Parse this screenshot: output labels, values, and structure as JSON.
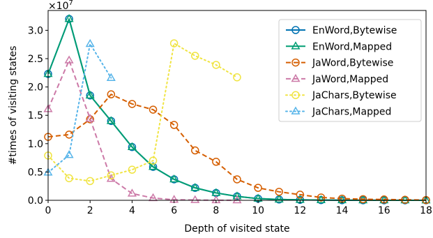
{
  "chart_data": {
    "type": "line",
    "title": "",
    "xlabel": "Depth of visited state",
    "ylabel": "#times of visiting states",
    "offset_text": "×10",
    "offset_exponent": "7",
    "xlim": [
      0,
      18
    ],
    "ylim": [
      0,
      3.35
    ],
    "y_scale_multiplier": 10000000,
    "xticks": [
      "0",
      "2",
      "4",
      "6",
      "8",
      "10",
      "12",
      "14",
      "16",
      "18"
    ],
    "yticks": [
      "0.0",
      "0.5",
      "1.0",
      "1.5",
      "2.0",
      "2.5",
      "3.0"
    ],
    "grid": false,
    "legend_position": "top-right",
    "series": [
      {
        "name": "EnWord,Bytewise",
        "color": "#0072B2",
        "linestyle": "solid",
        "marker": "circle",
        "x": [
          0,
          1,
          2,
          3,
          4,
          5,
          6,
          7,
          8,
          9,
          10,
          11,
          12,
          13,
          14,
          15,
          16,
          17,
          18
        ],
        "y": [
          2.23,
          3.2,
          1.85,
          1.4,
          0.94,
          0.59,
          0.37,
          0.22,
          0.13,
          0.07,
          0.03,
          0.015,
          0.008,
          0.004,
          0.002,
          0.001,
          0.0005,
          0.0002,
          0.0001
        ]
      },
      {
        "name": "EnWord,Mapped",
        "color": "#009E73",
        "linestyle": "solid",
        "marker": "triangle",
        "x": [
          0,
          1,
          2,
          3,
          4,
          5,
          6,
          7,
          8,
          9,
          10,
          11,
          12,
          13,
          14,
          15,
          16,
          17,
          18
        ],
        "y": [
          2.23,
          3.2,
          1.85,
          1.4,
          0.94,
          0.59,
          0.37,
          0.22,
          0.13,
          0.07,
          0.03,
          0.015,
          0.008,
          0.004,
          0.002,
          0.001,
          0.0005,
          0.0002,
          0.0001
        ]
      },
      {
        "name": "JaWord,Bytewise",
        "color": "#D55E00",
        "linestyle": "dashed",
        "marker": "circle",
        "x": [
          0,
          1,
          2,
          3,
          4,
          5,
          6,
          7,
          8,
          9,
          10,
          11,
          12,
          13,
          14,
          15,
          16,
          17,
          18
        ],
        "y": [
          1.12,
          1.16,
          1.43,
          1.87,
          1.7,
          1.6,
          1.33,
          0.88,
          0.68,
          0.37,
          0.22,
          0.15,
          0.1,
          0.05,
          0.03,
          0.02,
          0.015,
          0.01,
          0.005
        ]
      },
      {
        "name": "JaWord,Mapped",
        "color": "#CC79A7",
        "linestyle": "dashed",
        "marker": "triangle",
        "x": [
          0,
          1,
          2,
          3,
          4,
          5,
          6,
          7,
          8,
          9
        ],
        "y": [
          1.61,
          2.47,
          1.44,
          0.38,
          0.12,
          0.04,
          0.01,
          0.005,
          0.002,
          0.001
        ]
      },
      {
        "name": "JaChars,Bytewise",
        "color": "#F0E442",
        "linestyle": "dotted",
        "marker": "circle",
        "x": [
          0,
          1,
          2,
          3,
          4,
          5,
          6,
          7,
          8,
          9
        ],
        "y": [
          0.79,
          0.39,
          0.34,
          0.44,
          0.54,
          0.7,
          2.77,
          2.55,
          2.39,
          2.17
        ]
      },
      {
        "name": "JaChars,Mapped",
        "color": "#56B4E9",
        "linestyle": "dotted",
        "marker": "triangle",
        "x": [
          0,
          1,
          2,
          3
        ],
        "y": [
          0.49,
          0.8,
          2.76,
          2.16
        ]
      }
    ]
  }
}
